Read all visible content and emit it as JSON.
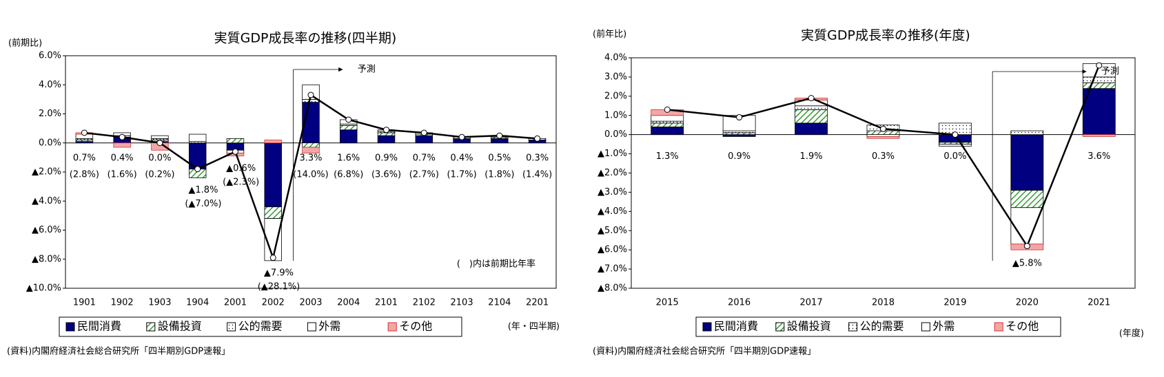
{
  "chart_data": [
    {
      "type": "bar",
      "stacked": true,
      "title": "実質GDP成長率の推移(四半期)",
      "y_label": "(前期比)",
      "x_label": "(年・四半期)",
      "categories": [
        "1901",
        "1902",
        "1903",
        "1904",
        "2001",
        "2002",
        "2003",
        "2004",
        "2101",
        "2102",
        "2103",
        "2104",
        "2201"
      ],
      "series": [
        {
          "name": "民間消費",
          "color": "#000080",
          "pattern": "solid",
          "values": [
            0.1,
            0.4,
            0.1,
            -1.8,
            -0.5,
            -4.4,
            2.8,
            0.9,
            0.5,
            0.5,
            0.3,
            0.3,
            0.2
          ]
        },
        {
          "name": "設備投資",
          "color": "#339933",
          "pattern": "hatch",
          "values": [
            0.1,
            0.0,
            0.1,
            -0.6,
            0.3,
            -0.8,
            -0.3,
            0.3,
            0.2,
            0.1,
            0.1,
            0.1,
            0.1
          ]
        },
        {
          "name": "公的需要",
          "color": "#ffffff",
          "pattern": "dots",
          "values": [
            0.1,
            0.1,
            0.1,
            0.1,
            0.0,
            0.0,
            0.2,
            0.1,
            0.1,
            0.0,
            0.0,
            0.0,
            0.0
          ]
        },
        {
          "name": "外需",
          "color": "#ffffff",
          "pattern": "solid",
          "values": [
            0.3,
            0.2,
            0.2,
            0.5,
            -0.2,
            -2.9,
            1.0,
            0.3,
            0.1,
            0.1,
            0.0,
            0.1,
            0.0
          ]
        },
        {
          "name": "その他",
          "color": "#f4a6a6",
          "pattern": "solid",
          "values": [
            0.1,
            -0.3,
            -0.5,
            0.0,
            -0.2,
            0.2,
            -0.4,
            0.0,
            0.0,
            0.0,
            0.0,
            0.0,
            0.0
          ]
        }
      ],
      "line": {
        "color": "#000000",
        "values": [
          0.7,
          0.4,
          0.0,
          -1.8,
          -0.6,
          -7.9,
          3.3,
          1.6,
          0.9,
          0.7,
          0.4,
          0.5,
          0.3
        ],
        "value_labels": [
          "0.7%",
          "0.4%",
          "0.0%",
          "▲1.8%",
          "▲0.6%",
          "▲7.9%",
          "3.3%",
          "1.6%",
          "0.9%",
          "0.7%",
          "0.4%",
          "0.5%",
          "0.3%"
        ]
      },
      "annualized": {
        "values": [
          2.8,
          1.6,
          0.2,
          -7.0,
          -2.3,
          -28.1,
          14.0,
          6.8,
          3.6,
          2.7,
          1.7,
          1.8,
          1.4
        ],
        "value_labels": [
          "(2.8%)",
          "(1.6%)",
          "(0.2%)",
          "(▲7.0%)",
          "(▲2.3%)",
          "(▲28.1%)",
          "(14.0%)",
          "(6.8%)",
          "(3.6%)",
          "(2.7%)",
          "(1.7%)",
          "(1.8%)",
          "(1.4%)"
        ]
      },
      "note": "(　)内は前期比年率",
      "forecast": {
        "label": "予測",
        "from": "2003"
      },
      "source": "(資料)内閣府経済社会総合研究所「四半期別GDP速報」",
      "ylim": [
        -10,
        6
      ],
      "yticks": [
        {
          "value": -10,
          "label": "▲10.0%"
        },
        {
          "value": -8,
          "label": "▲8.0%"
        },
        {
          "value": -6,
          "label": "▲6.0%"
        },
        {
          "value": -4,
          "label": "▲4.0%"
        },
        {
          "value": -2,
          "label": "▲2.0%"
        },
        {
          "value": 0,
          "label": "0.0%"
        },
        {
          "value": 2,
          "label": "2.0%"
        },
        {
          "value": 4,
          "label": "4.0%"
        },
        {
          "value": 6,
          "label": "6.0%"
        }
      ]
    },
    {
      "type": "bar",
      "stacked": true,
      "title": "実質GDP成長率の推移(年度)",
      "y_label": "(前年比)",
      "x_label": "(年度)",
      "categories": [
        "2015",
        "2016",
        "2017",
        "2018",
        "2019",
        "2020",
        "2021"
      ],
      "series": [
        {
          "name": "民間消費",
          "color": "#000080",
          "pattern": "solid",
          "values": [
            0.4,
            -0.1,
            0.6,
            0.0,
            -0.4,
            -2.9,
            2.4
          ]
        },
        {
          "name": "設備投資",
          "color": "#339933",
          "pattern": "hatch",
          "values": [
            0.2,
            0.1,
            0.7,
            0.2,
            -0.1,
            -0.9,
            0.3
          ]
        },
        {
          "name": "公的需要",
          "color": "#ffffff",
          "pattern": "dots",
          "values": [
            0.1,
            0.1,
            0.2,
            0.3,
            0.6,
            0.2,
            0.3
          ]
        },
        {
          "name": "外需",
          "color": "#ffffff",
          "pattern": "solid",
          "values": [
            0.3,
            0.8,
            0.3,
            -0.1,
            -0.1,
            -1.9,
            0.7
          ]
        },
        {
          "name": "その他",
          "color": "#f4a6a6",
          "pattern": "solid",
          "values": [
            0.3,
            0.0,
            0.1,
            -0.1,
            0.0,
            -0.3,
            -0.1
          ]
        }
      ],
      "line": {
        "color": "#000000",
        "values": [
          1.3,
          0.9,
          1.9,
          0.3,
          0.0,
          -5.8,
          3.6
        ],
        "value_labels": [
          "1.3%",
          "0.9%",
          "1.9%",
          "0.3%",
          "0.0%",
          "▲5.8%",
          "3.6%"
        ]
      },
      "forecast": {
        "label": "予測",
        "from": "2020"
      },
      "source": "(資料)内閣府経済社会総合研究所「四半期別GDP速報」",
      "ylim": [
        -8,
        4
      ],
      "yticks": [
        {
          "value": -8,
          "label": "▲8.0%"
        },
        {
          "value": -7,
          "label": "▲7.0%"
        },
        {
          "value": -6,
          "label": "▲6.0%"
        },
        {
          "value": -5,
          "label": "▲5.0%"
        },
        {
          "value": -4,
          "label": "▲4.0%"
        },
        {
          "value": -3,
          "label": "▲3.0%"
        },
        {
          "value": -2,
          "label": "▲2.0%"
        },
        {
          "value": -1,
          "label": "▲1.0%"
        },
        {
          "value": 0,
          "label": "0.0%"
        },
        {
          "value": 1,
          "label": "1.0%"
        },
        {
          "value": 2,
          "label": "2.0%"
        },
        {
          "value": 3,
          "label": "3.0%"
        },
        {
          "value": 4,
          "label": "4.0%"
        }
      ]
    }
  ]
}
